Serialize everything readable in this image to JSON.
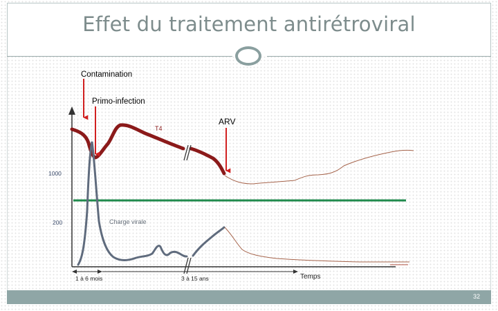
{
  "slide": {
    "title": "Effet du traitement antirétroviral",
    "page_number": "32"
  },
  "colors": {
    "t4": "#8b1a1a",
    "t4_after": "#a5634a",
    "viral": "#5f6b7d",
    "viral_after": "#a5634a",
    "threshold": "#1f8a4c",
    "arrow": "#d12020",
    "axis": "#333333",
    "title": "#7d8c8c",
    "footer": "#8fa6a6"
  },
  "chart_data": {
    "type": "line",
    "title": "",
    "xlabel": "Temps",
    "ylabel": "",
    "y_ticks": [
      "1000",
      "200"
    ],
    "x_period_labels": [
      "1 à 6 mois",
      "3 à 15 ans"
    ],
    "annotations": {
      "contamination": "Contamination",
      "primo_infection": "Primo-infection",
      "arv": "ARV"
    },
    "series": [
      {
        "name": "T4"
      },
      {
        "name": "Charge virale"
      }
    ]
  }
}
